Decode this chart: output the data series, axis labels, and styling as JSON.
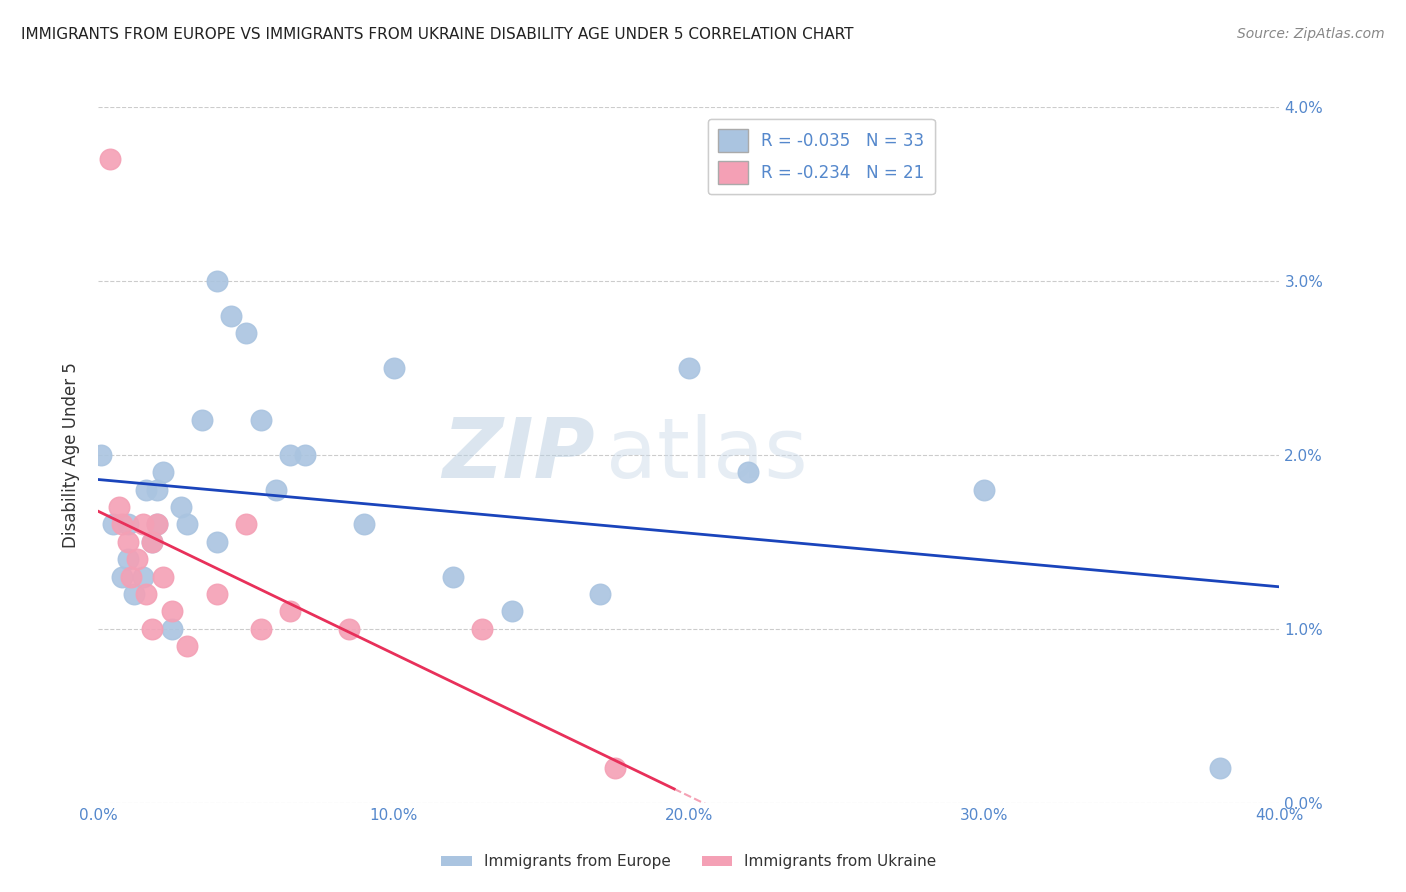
{
  "title": "IMMIGRANTS FROM EUROPE VS IMMIGRANTS FROM UKRAINE DISABILITY AGE UNDER 5 CORRELATION CHART",
  "source": "Source: ZipAtlas.com",
  "ylabel": "Disability Age Under 5",
  "watermark_zip": "ZIP",
  "watermark_atlas": "atlas",
  "europe_x": [
    0.001,
    0.005,
    0.008,
    0.01,
    0.01,
    0.012,
    0.015,
    0.016,
    0.018,
    0.02,
    0.02,
    0.022,
    0.025,
    0.028,
    0.03,
    0.035,
    0.04,
    0.04,
    0.045,
    0.05,
    0.055,
    0.06,
    0.065,
    0.07,
    0.09,
    0.1,
    0.12,
    0.14,
    0.17,
    0.2,
    0.22,
    0.3,
    0.38
  ],
  "europe_y": [
    0.02,
    0.016,
    0.013,
    0.016,
    0.014,
    0.012,
    0.013,
    0.018,
    0.015,
    0.016,
    0.018,
    0.019,
    0.01,
    0.017,
    0.016,
    0.022,
    0.015,
    0.03,
    0.028,
    0.027,
    0.022,
    0.018,
    0.02,
    0.02,
    0.016,
    0.025,
    0.013,
    0.011,
    0.012,
    0.025,
    0.019,
    0.018,
    0.002
  ],
  "ukraine_x": [
    0.004,
    0.007,
    0.008,
    0.01,
    0.011,
    0.013,
    0.015,
    0.016,
    0.018,
    0.018,
    0.02,
    0.022,
    0.025,
    0.03,
    0.04,
    0.05,
    0.055,
    0.065,
    0.085,
    0.13,
    0.175
  ],
  "ukraine_y": [
    0.037,
    0.017,
    0.016,
    0.015,
    0.013,
    0.014,
    0.016,
    0.012,
    0.015,
    0.01,
    0.016,
    0.013,
    0.011,
    0.009,
    0.012,
    0.016,
    0.01,
    0.011,
    0.01,
    0.01,
    0.002
  ],
  "europe_R": -0.035,
  "europe_N": 33,
  "ukraine_R": -0.234,
  "ukraine_N": 21,
  "xlim": [
    0.0,
    0.4
  ],
  "ylim": [
    0.0,
    0.04
  ],
  "xticks": [
    0.0,
    0.1,
    0.2,
    0.3,
    0.4
  ],
  "yticks": [
    0.0,
    0.01,
    0.02,
    0.03,
    0.04
  ],
  "europe_color": "#aac4e0",
  "ukraine_color": "#f4a0b5",
  "europe_line_color": "#1a44bb",
  "ukraine_line_color": "#e8305a",
  "background_color": "#ffffff",
  "grid_color": "#cccccc",
  "tick_color": "#5588cc",
  "title_color": "#222222",
  "source_color": "#888888",
  "ylabel_color": "#333333"
}
